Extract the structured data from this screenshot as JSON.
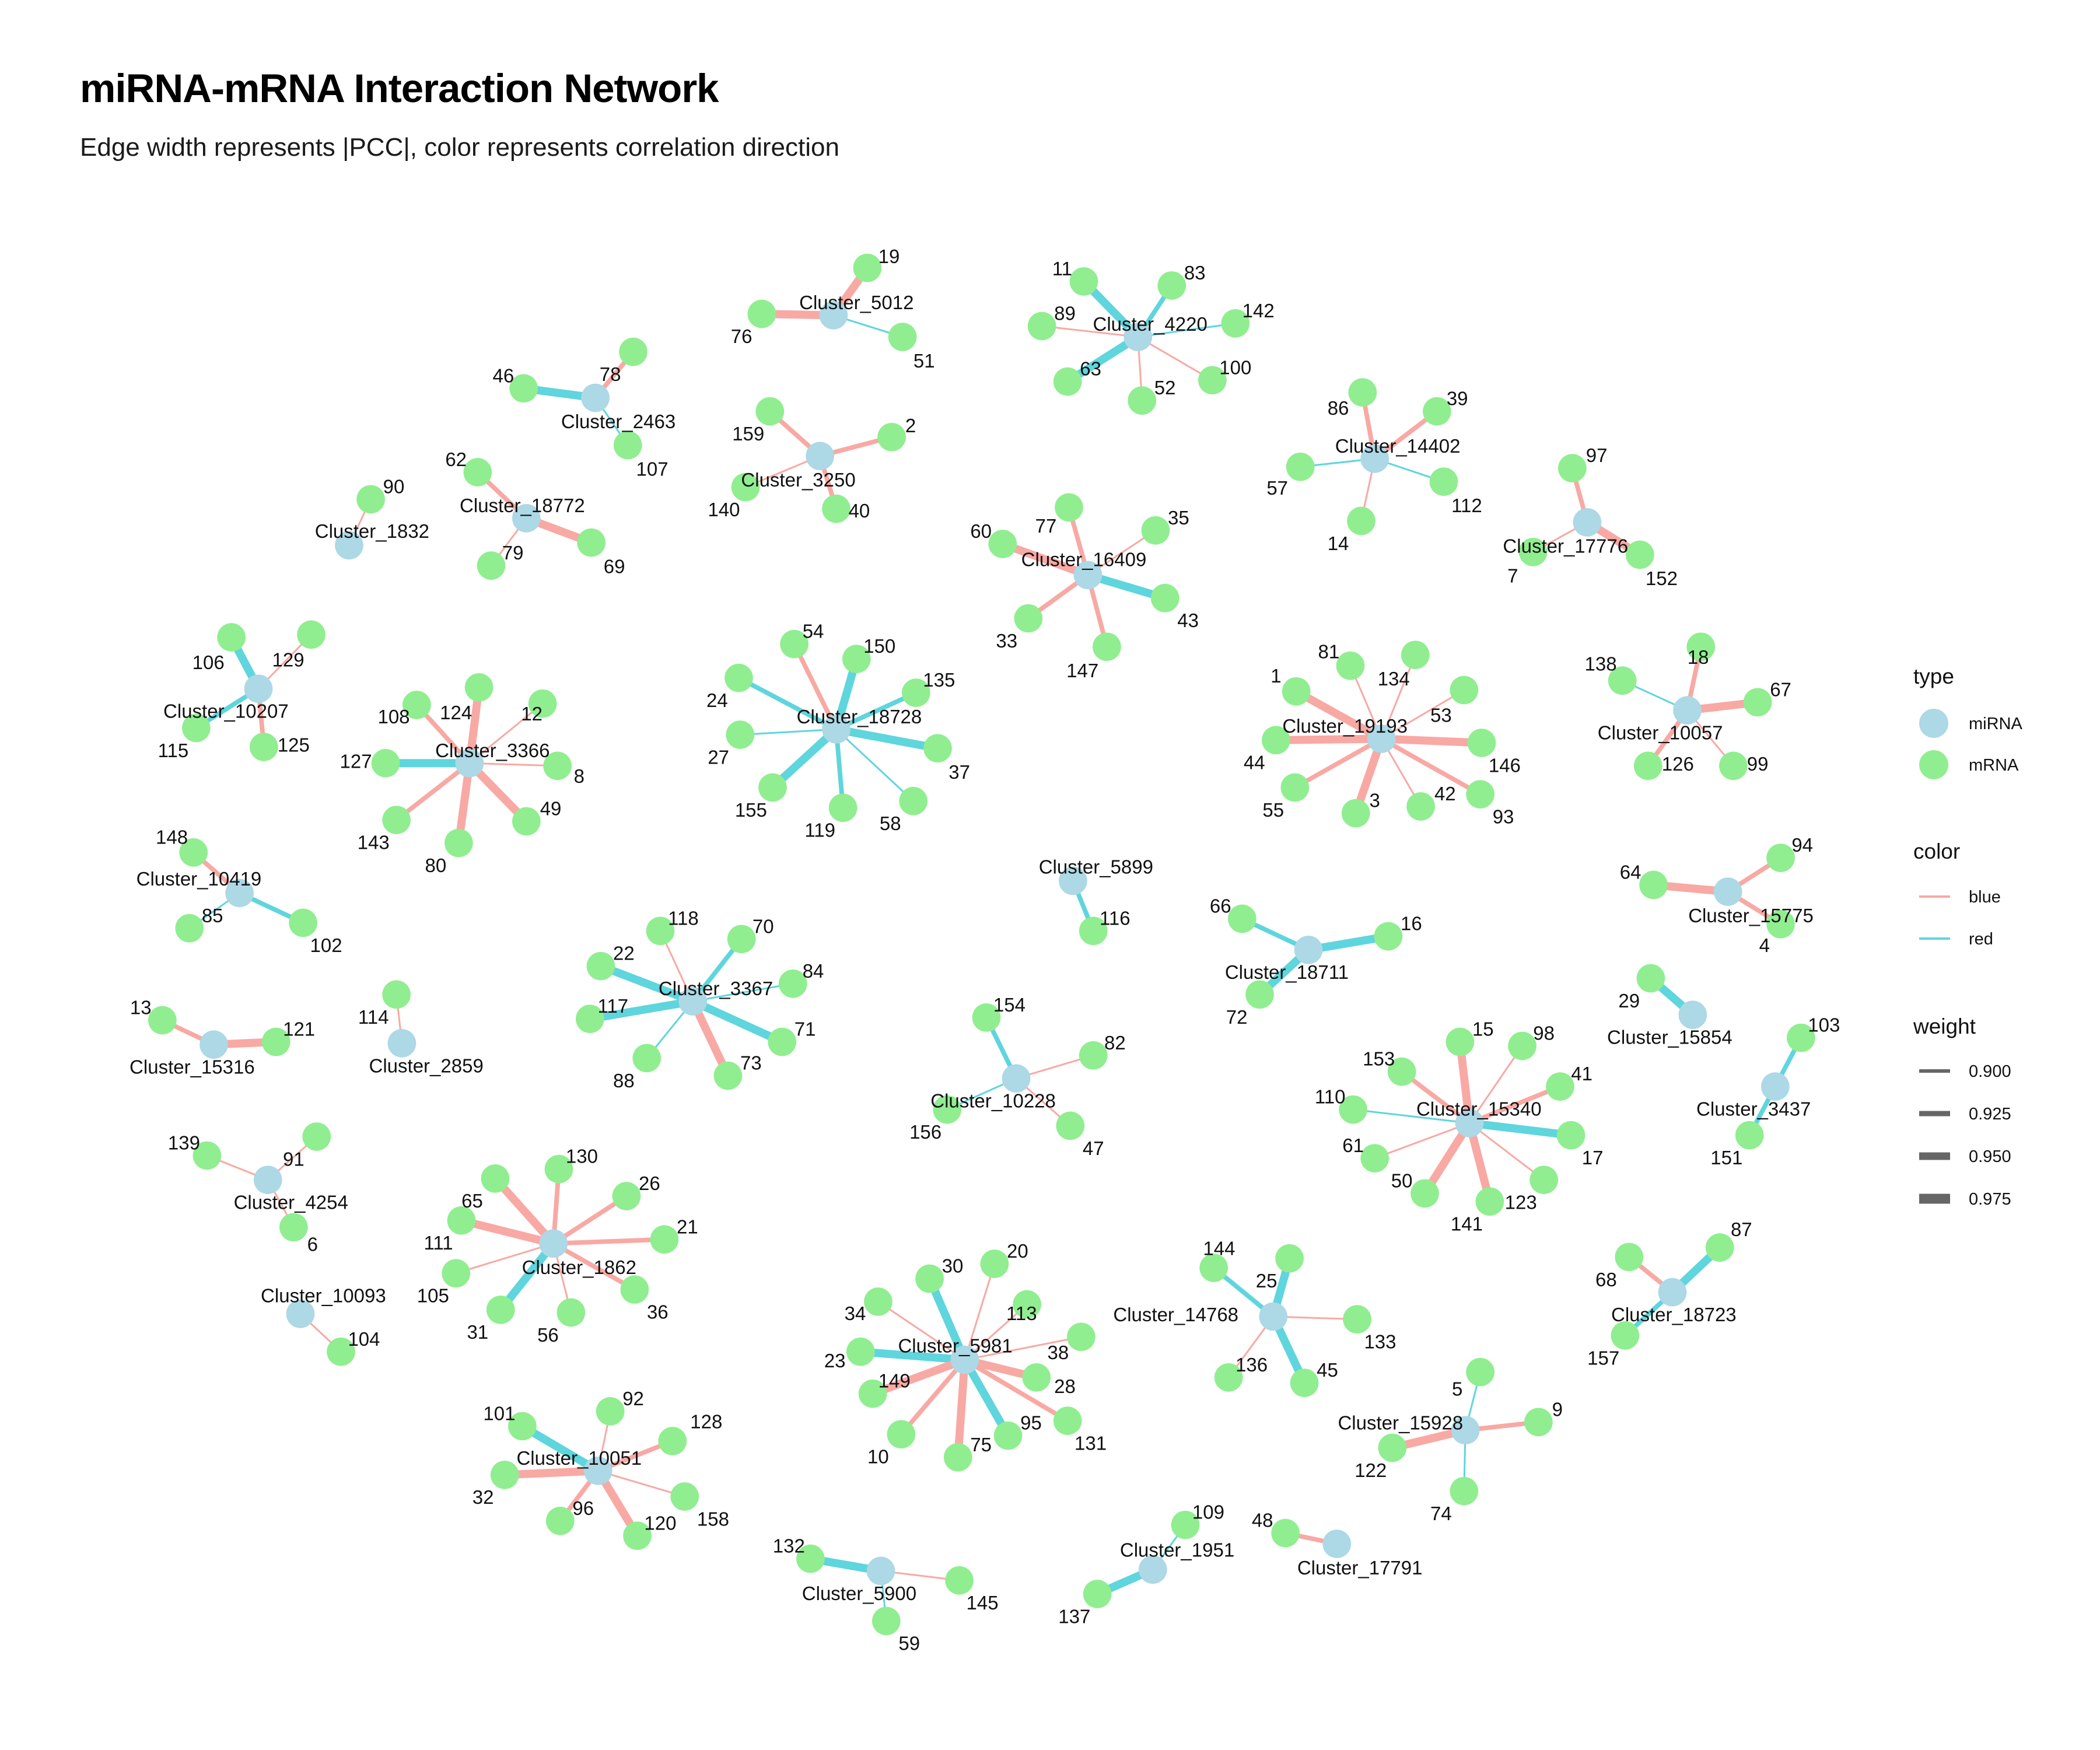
{
  "title": "miRNA-mRNA Interaction Network",
  "subtitle": "Edge width represents |PCC|, color represents correlation direction",
  "colors": {
    "miRNA": "#add8e6",
    "mRNA": "#90ee90",
    "blue": "#f8a9a4",
    "red": "#5fd5dd",
    "weight": "#666666"
  },
  "legend": {
    "type": {
      "title": "type",
      "items": [
        "miRNA",
        "mRNA"
      ]
    },
    "color": {
      "title": "color",
      "items": [
        "blue",
        "red"
      ]
    },
    "weight": {
      "title": "weight",
      "items": [
        "0.900",
        "0.925",
        "0.950",
        "0.975"
      ]
    }
  },
  "network": {
    "clusters": [
      {
        "name": "Cluster_5012",
        "edges": [
          [
            "19",
            "blue",
            3
          ],
          [
            "76",
            "blue",
            3
          ],
          [
            "51",
            "red",
            1
          ]
        ]
      },
      {
        "name": "Cluster_4220",
        "edges": [
          [
            "11",
            "red",
            3
          ],
          [
            "83",
            "red",
            2
          ],
          [
            "89",
            "blue",
            1
          ],
          [
            "142",
            "red",
            1
          ],
          [
            "63",
            "red",
            3
          ],
          [
            "52",
            "blue",
            1
          ],
          [
            "100",
            "blue",
            1
          ]
        ]
      },
      {
        "name": "Cluster_2463",
        "edges": [
          [
            "46",
            "red",
            3
          ],
          [
            "78",
            "blue",
            2
          ],
          [
            "107",
            "red",
            1
          ]
        ]
      },
      {
        "name": "Cluster_3250",
        "edges": [
          [
            "159",
            "blue",
            2
          ],
          [
            "2",
            "blue",
            2
          ],
          [
            "140",
            "blue",
            1
          ],
          [
            "40",
            "blue",
            2
          ]
        ]
      },
      {
        "name": "Cluster_14402",
        "edges": [
          [
            "86",
            "blue",
            2
          ],
          [
            "39",
            "blue",
            2
          ],
          [
            "57",
            "red",
            1
          ],
          [
            "112",
            "red",
            1
          ],
          [
            "14",
            "blue",
            1
          ]
        ]
      },
      {
        "name": "Cluster_18772",
        "edges": [
          [
            "62",
            "blue",
            2
          ],
          [
            "79",
            "blue",
            1
          ],
          [
            "69",
            "blue",
            3
          ]
        ]
      },
      {
        "name": "Cluster_1832",
        "edges": [
          [
            "90",
            "blue",
            1
          ]
        ]
      },
      {
        "name": "Cluster_16409",
        "edges": [
          [
            "60",
            "blue",
            3
          ],
          [
            "77",
            "blue",
            2
          ],
          [
            "35",
            "blue",
            1
          ],
          [
            "33",
            "blue",
            2
          ],
          [
            "43",
            "red",
            3
          ],
          [
            "147",
            "blue",
            2
          ]
        ]
      },
      {
        "name": "Cluster_17776",
        "edges": [
          [
            "97",
            "blue",
            2
          ],
          [
            "7",
            "blue",
            1
          ],
          [
            "152",
            "blue",
            3
          ]
        ]
      },
      {
        "name": "Cluster_10207",
        "edges": [
          [
            "106",
            "red",
            3
          ],
          [
            "129",
            "blue",
            1
          ],
          [
            "115",
            "red",
            2
          ],
          [
            "125",
            "blue",
            2
          ]
        ]
      },
      {
        "name": "Cluster_3366",
        "edges": [
          [
            "108",
            "blue",
            2
          ],
          [
            "124",
            "blue",
            3
          ],
          [
            "12",
            "blue",
            1
          ],
          [
            "127",
            "red",
            3
          ],
          [
            "8",
            "blue",
            1
          ],
          [
            "143",
            "blue",
            2
          ],
          [
            "80",
            "blue",
            3
          ],
          [
            "49",
            "blue",
            3
          ]
        ]
      },
      {
        "name": "Cluster_18728",
        "edges": [
          [
            "54",
            "blue",
            2
          ],
          [
            "150",
            "red",
            3
          ],
          [
            "24",
            "red",
            2
          ],
          [
            "135",
            "red",
            2
          ],
          [
            "27",
            "red",
            1
          ],
          [
            "37",
            "red",
            3
          ],
          [
            "155",
            "red",
            3
          ],
          [
            "119",
            "red",
            2
          ],
          [
            "58",
            "red",
            1
          ]
        ]
      },
      {
        "name": "Cluster_19193",
        "edges": [
          [
            "81",
            "blue",
            1
          ],
          [
            "134",
            "blue",
            1
          ],
          [
            "1",
            "blue",
            3
          ],
          [
            "53",
            "blue",
            1
          ],
          [
            "44",
            "blue",
            3
          ],
          [
            "146",
            "blue",
            3
          ],
          [
            "55",
            "blue",
            2
          ],
          [
            "3",
            "blue",
            3
          ],
          [
            "42",
            "blue",
            1
          ],
          [
            "93",
            "blue",
            2
          ]
        ]
      },
      {
        "name": "Cluster_10057",
        "edges": [
          [
            "138",
            "red",
            1
          ],
          [
            "18",
            "blue",
            2
          ],
          [
            "67",
            "blue",
            3
          ],
          [
            "126",
            "blue",
            2
          ],
          [
            "99",
            "blue",
            1
          ]
        ]
      },
      {
        "name": "Cluster_10419",
        "edges": [
          [
            "148",
            "blue",
            2
          ],
          [
            "85",
            "red",
            1
          ],
          [
            "102",
            "red",
            2
          ]
        ]
      },
      {
        "name": "Cluster_5899",
        "edges": [
          [
            "116",
            "red",
            2
          ]
        ]
      },
      {
        "name": "Cluster_15775",
        "edges": [
          [
            "64",
            "blue",
            3
          ],
          [
            "94",
            "blue",
            2
          ],
          [
            "4",
            "blue",
            2
          ]
        ]
      },
      {
        "name": "Cluster_18711",
        "edges": [
          [
            "66",
            "red",
            2
          ],
          [
            "16",
            "red",
            3
          ],
          [
            "72",
            "red",
            3
          ]
        ]
      },
      {
        "name": "Cluster_3367",
        "edges": [
          [
            "118",
            "blue",
            1
          ],
          [
            "70",
            "red",
            2
          ],
          [
            "22",
            "red",
            3
          ],
          [
            "84",
            "red",
            1
          ],
          [
            "117",
            "red",
            3
          ],
          [
            "71",
            "red",
            3
          ],
          [
            "88",
            "red",
            1
          ],
          [
            "73",
            "blue",
            3
          ]
        ]
      },
      {
        "name": "Cluster_15316",
        "edges": [
          [
            "13",
            "blue",
            2
          ],
          [
            "121",
            "blue",
            3
          ]
        ]
      },
      {
        "name": "Cluster_2859",
        "edges": [
          [
            "114",
            "blue",
            1
          ]
        ]
      },
      {
        "name": "Cluster_15854",
        "edges": [
          [
            "29",
            "red",
            3
          ]
        ]
      },
      {
        "name": "Cluster_3437",
        "edges": [
          [
            "103",
            "red",
            2
          ],
          [
            "151",
            "red",
            2
          ]
        ]
      },
      {
        "name": "Cluster_10228",
        "edges": [
          [
            "154",
            "red",
            2
          ],
          [
            "82",
            "blue",
            1
          ],
          [
            "156",
            "red",
            1
          ],
          [
            "47",
            "blue",
            1
          ]
        ]
      },
      {
        "name": "Cluster_15340",
        "edges": [
          [
            "15",
            "blue",
            3
          ],
          [
            "98",
            "blue",
            1
          ],
          [
            "153",
            "blue",
            2
          ],
          [
            "41",
            "blue",
            2
          ],
          [
            "110",
            "red",
            1
          ],
          [
            "17",
            "red",
            3
          ],
          [
            "61",
            "blue",
            1
          ],
          [
            "50",
            "blue",
            3
          ],
          [
            "141",
            "blue",
            3
          ],
          [
            "123",
            "blue",
            1
          ]
        ]
      },
      {
        "name": "Cluster_4254",
        "edges": [
          [
            "139",
            "blue",
            1
          ],
          [
            "91",
            "blue",
            1
          ],
          [
            "6",
            "blue",
            1
          ]
        ]
      },
      {
        "name": "Cluster_1862",
        "edges": [
          [
            "130",
            "blue",
            2
          ],
          [
            "26",
            "blue",
            2
          ],
          [
            "65",
            "blue",
            3
          ],
          [
            "21",
            "blue",
            2
          ],
          [
            "111",
            "blue",
            3
          ],
          [
            "105",
            "blue",
            1
          ],
          [
            "36",
            "blue",
            2
          ],
          [
            "31",
            "red",
            3
          ],
          [
            "56",
            "blue",
            1
          ]
        ]
      },
      {
        "name": "Cluster_14768",
        "edges": [
          [
            "144",
            "red",
            2
          ],
          [
            "25",
            "red",
            3
          ],
          [
            "133",
            "blue",
            1
          ],
          [
            "136",
            "blue",
            1
          ],
          [
            "45",
            "red",
            3
          ]
        ]
      },
      {
        "name": "Cluster_18723",
        "edges": [
          [
            "87",
            "red",
            3
          ],
          [
            "68",
            "blue",
            2
          ],
          [
            "157",
            "red",
            2
          ]
        ]
      },
      {
        "name": "Cluster_10093",
        "edges": [
          [
            "104",
            "blue",
            1
          ]
        ]
      },
      {
        "name": "Cluster_5981",
        "edges": [
          [
            "30",
            "red",
            3
          ],
          [
            "20",
            "blue",
            1
          ],
          [
            "34",
            "blue",
            1
          ],
          [
            "113",
            "blue",
            1
          ],
          [
            "23",
            "red",
            3
          ],
          [
            "38",
            "blue",
            1
          ],
          [
            "149",
            "blue",
            3
          ],
          [
            "28",
            "blue",
            3
          ],
          [
            "10",
            "blue",
            2
          ],
          [
            "95",
            "red",
            3
          ],
          [
            "75",
            "blue",
            3
          ],
          [
            "131",
            "blue",
            2
          ]
        ]
      },
      {
        "name": "Cluster_15928",
        "edges": [
          [
            "5",
            "red",
            1
          ],
          [
            "9",
            "blue",
            2
          ],
          [
            "122",
            "blue",
            3
          ],
          [
            "74",
            "red",
            1
          ]
        ]
      },
      {
        "name": "Cluster_10051",
        "edges": [
          [
            "101",
            "red",
            3
          ],
          [
            "92",
            "blue",
            1
          ],
          [
            "128",
            "blue",
            2
          ],
          [
            "32",
            "blue",
            3
          ],
          [
            "158",
            "blue",
            1
          ],
          [
            "96",
            "blue",
            2
          ],
          [
            "120",
            "blue",
            3
          ]
        ]
      },
      {
        "name": "Cluster_1951",
        "edges": [
          [
            "109",
            "red",
            1
          ],
          [
            "137",
            "red",
            3
          ]
        ]
      },
      {
        "name": "Cluster_17791",
        "edges": [
          [
            "48",
            "blue",
            2
          ]
        ]
      },
      {
        "name": "Cluster_5900",
        "edges": [
          [
            "132",
            "red",
            3
          ],
          [
            "145",
            "blue",
            1
          ],
          [
            "59",
            "red",
            1
          ]
        ]
      }
    ]
  }
}
